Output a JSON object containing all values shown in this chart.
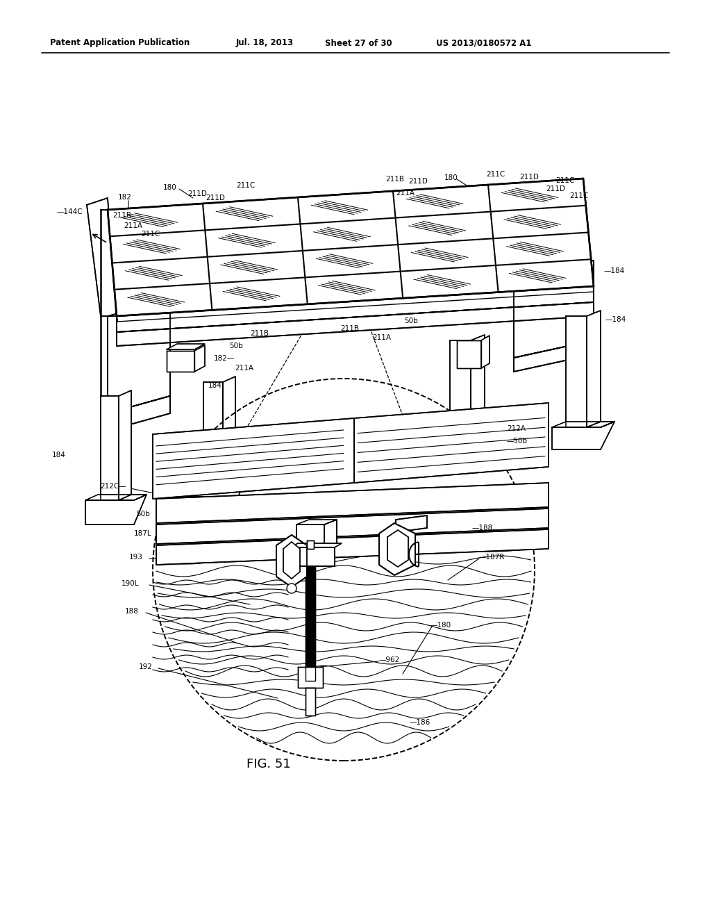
{
  "bg_color": "#ffffff",
  "header_text": "Patent Application Publication",
  "header_date": "Jul. 18, 2013",
  "header_sheet": "Sheet 27 of 30",
  "header_patent": "US 2013/0180572 A1",
  "figure_label": "FIG. 51"
}
